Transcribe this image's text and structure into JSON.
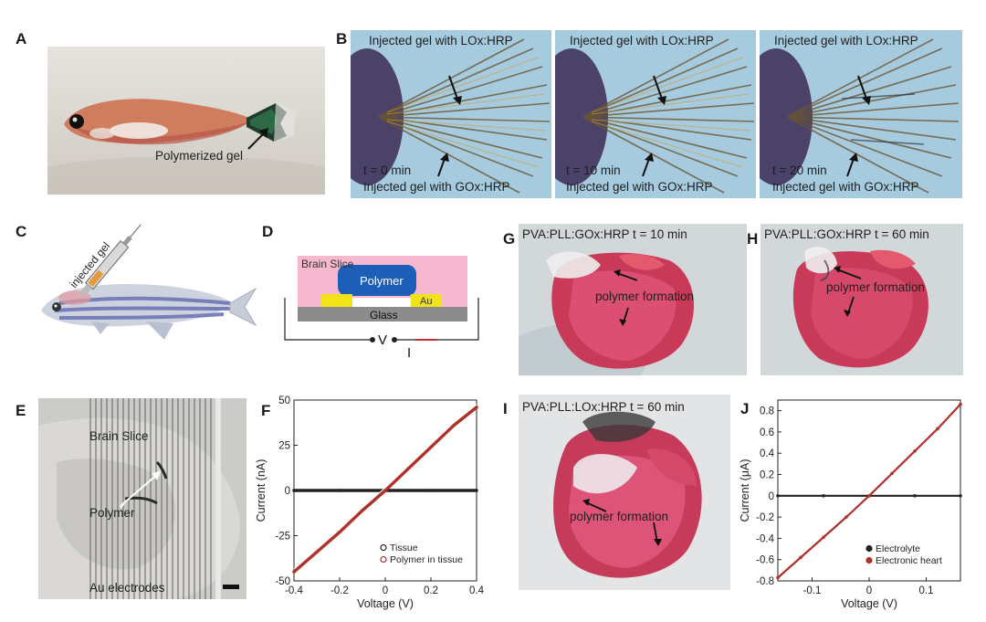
{
  "panels": {
    "A": {
      "label": "A",
      "annotation": "Polymerized gel"
    },
    "B": {
      "label": "B",
      "subpanels": [
        {
          "top": "Injected gel with LOx:HRP",
          "time": "t = 0 min",
          "bottom": "Injected gel with GOx:HRP"
        },
        {
          "top": "Injected gel with LOx:HRP",
          "time": "t = 10 min",
          "bottom": "Injected gel with GOx:HRP"
        },
        {
          "top": "Injected gel with LOx:HRP",
          "time": "t = 20 min",
          "bottom": "Injected gel with GOx:HRP"
        }
      ]
    },
    "C": {
      "label": "C",
      "annotation": "injected gel"
    },
    "D": {
      "label": "D",
      "brain_slice": "Brain Slice",
      "polymer": "Polymer",
      "au": "Au",
      "glass": "Glass",
      "v": "V",
      "i": "I"
    },
    "E": {
      "label": "E",
      "brain_slice": "Brain Slice",
      "polymer": "Polymer",
      "electrodes": "Au electrodes"
    },
    "G": {
      "label": "G",
      "title": "PVA:PLL:GOx:HRP  t = 10 min",
      "annotation": "polymer formation"
    },
    "H": {
      "label": "H",
      "title": "PVA:PLL:GOx:HRP  t = 60 min",
      "annotation": "polymer formation"
    },
    "I": {
      "label": "I",
      "title": "PVA:PLL:LOx:HRP    t = 60 min",
      "annotation": "polymer formation"
    }
  },
  "colors": {
    "tissue": "#222222",
    "polymer_in_tissue": "#b0302a",
    "electrolyte": "#222222",
    "electronic_heart": "#b0302a",
    "brain_slice_pink": "#f5b8cf",
    "polymer_blue": "#1d5fb8",
    "au_yellow": "#f2e21a",
    "glass_gray": "#8c8c8c"
  },
  "chart_data": [
    {
      "id": "F",
      "label": "F",
      "type": "line",
      "xlabel": "Voltage (V)",
      "ylabel": "Current (nA)",
      "xlim": [
        -0.4,
        0.4
      ],
      "ylim": [
        -50,
        50
      ],
      "xticks": [
        -0.4,
        -0.2,
        0,
        0.2,
        0.4
      ],
      "xtick_labels": [
        "-0.4",
        "-0.2",
        "0",
        "0.2",
        "0.4"
      ],
      "yticks": [
        -50,
        -25,
        0,
        25,
        50
      ],
      "ytick_labels": [
        "-50",
        "-25",
        "0",
        "25",
        "50"
      ],
      "legend_position": "bottom-right",
      "series": [
        {
          "name": "Tissue",
          "marker": "open-circle",
          "x": [
            -0.4,
            -0.2,
            0,
            0.2,
            0.4
          ],
          "y": [
            0,
            0,
            0,
            0,
            0
          ]
        },
        {
          "name": "Polymer in tissue",
          "marker": "open-circle",
          "x": [
            -0.4,
            -0.3,
            -0.2,
            -0.1,
            0,
            0.1,
            0.2,
            0.3,
            0.4
          ],
          "y": [
            -45,
            -34,
            -23,
            -11,
            0,
            12,
            24,
            36,
            46
          ]
        }
      ]
    },
    {
      "id": "J",
      "label": "J",
      "type": "line",
      "xlabel": "Voltage (V)",
      "ylabel": "Current (μA)",
      "xlim": [
        -0.16,
        0.16
      ],
      "ylim": [
        -0.8,
        0.9
      ],
      "xticks": [
        -0.1,
        0,
        0.1
      ],
      "xtick_labels": [
        "-0.1",
        "0",
        "0.1"
      ],
      "yticks": [
        -0.8,
        -0.6,
        -0.4,
        -0.2,
        0,
        0.2,
        0.4,
        0.6,
        0.8
      ],
      "ytick_labels": [
        "-0.8",
        "-0.6",
        "-0.4",
        "-0.2",
        "0",
        "0.2",
        "0.4",
        "0.6",
        "0.8"
      ],
      "legend_position": "bottom-right",
      "series": [
        {
          "name": "Electrolyte",
          "marker": "filled-circle",
          "x": [
            -0.16,
            -0.08,
            0,
            0.08,
            0.16
          ],
          "y": [
            0,
            0,
            0,
            0,
            0
          ]
        },
        {
          "name": "Electronic heart",
          "marker": "filled-circle",
          "x": [
            -0.16,
            -0.12,
            -0.08,
            -0.04,
            0,
            0.04,
            0.08,
            0.12,
            0.16
          ],
          "y": [
            -0.77,
            -0.58,
            -0.39,
            -0.2,
            0,
            0.21,
            0.42,
            0.63,
            0.86
          ]
        }
      ]
    }
  ]
}
